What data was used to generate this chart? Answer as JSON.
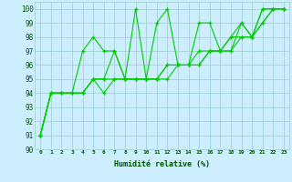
{
  "title": "",
  "xlabel": "Humidité relative (%)",
  "xlim": [
    -0.5,
    23.5
  ],
  "ylim": [
    90,
    100.5
  ],
  "xticks": [
    0,
    1,
    2,
    3,
    4,
    5,
    6,
    7,
    8,
    9,
    10,
    11,
    12,
    13,
    14,
    15,
    16,
    17,
    18,
    19,
    20,
    21,
    22,
    23
  ],
  "yticks": [
    90,
    91,
    92,
    93,
    94,
    95,
    96,
    97,
    98,
    99,
    100
  ],
  "background_color": "#cceeff",
  "grid_color": "#99cccc",
  "line_color": "#00cc00",
  "lines": [
    {
      "x": [
        0,
        1,
        2,
        3,
        4,
        5,
        6,
        7,
        8,
        9,
        10,
        11,
        12,
        13,
        14,
        15,
        16,
        17,
        18,
        19,
        20,
        21,
        22,
        23
      ],
      "y": [
        91,
        94,
        94,
        94,
        97,
        98,
        97,
        97,
        95,
        100,
        95,
        99,
        100,
        96,
        96,
        99,
        99,
        97,
        97,
        99,
        98,
        100,
        100,
        100
      ]
    },
    {
      "x": [
        0,
        1,
        2,
        3,
        4,
        5,
        6,
        7,
        8,
        9,
        10,
        11,
        12,
        13,
        14,
        15,
        16,
        17,
        18,
        19,
        20,
        21,
        22,
        23
      ],
      "y": [
        91,
        94,
        94,
        94,
        94,
        95,
        95,
        97,
        95,
        95,
        95,
        95,
        96,
        96,
        96,
        97,
        97,
        97,
        98,
        99,
        98,
        100,
        100,
        100
      ]
    },
    {
      "x": [
        0,
        1,
        2,
        3,
        4,
        5,
        6,
        7,
        8,
        9,
        10,
        11,
        12,
        13,
        14,
        15,
        16,
        17,
        18,
        19,
        20,
        21,
        22,
        23
      ],
      "y": [
        91,
        94,
        94,
        94,
        94,
        95,
        95,
        95,
        95,
        95,
        95,
        95,
        96,
        96,
        96,
        96,
        97,
        97,
        98,
        98,
        98,
        99,
        100,
        100
      ]
    },
    {
      "x": [
        0,
        1,
        2,
        3,
        4,
        5,
        6,
        7,
        8,
        9,
        10,
        11,
        12,
        13,
        14,
        15,
        16,
        17,
        18,
        19,
        20,
        21,
        22,
        23
      ],
      "y": [
        91,
        94,
        94,
        94,
        94,
        95,
        94,
        95,
        95,
        95,
        95,
        95,
        95,
        96,
        96,
        96,
        97,
        97,
        97,
        98,
        98,
        99,
        100,
        100
      ]
    }
  ]
}
